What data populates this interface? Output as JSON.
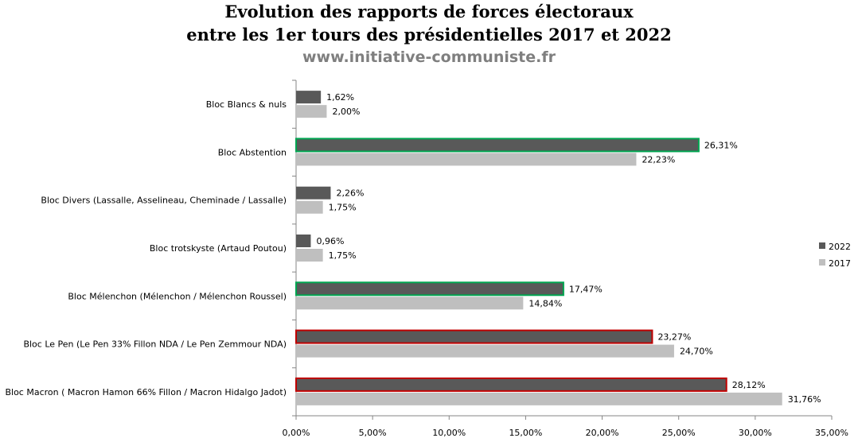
{
  "header": {
    "title_line1": "Evolution des rapports de forces électoraux",
    "title_line2": "entre les 1er tours des présidentielles 2017 et 2022",
    "subtitle": "www.initiative-communiste.fr"
  },
  "chart_data": {
    "type": "bar",
    "orientation": "horizontal",
    "title": "Evolution des rapports de forces électoraux entre les 1er tours des présidentielles 2017 et 2022",
    "subtitle": "www.initiative-communiste.fr",
    "categories": [
      "Bloc Blancs & nuls",
      "Bloc Abstention",
      "Bloc Divers (Lassalle, Asselineau, Cheminade / Lassalle)",
      "Bloc trotskyste (Artaud Poutou)",
      "Bloc Mélenchon (Mélenchon / Mélenchon Roussel)",
      "Bloc Le Pen (Le Pen 33% Fillon NDA  / Le Pen Zemmour NDA)",
      "Bloc Macron ( Macron Hamon  66% Fillon / Macron Hidalgo  Jadot)"
    ],
    "series": [
      {
        "name": "2022",
        "color": "#595959",
        "values": [
          1.62,
          26.31,
          2.26,
          0.96,
          17.47,
          23.27,
          28.12
        ],
        "labels": [
          "1,62%",
          "26,31%",
          "2,26%",
          "0,96%",
          "17,47%",
          "23,27%",
          "28,12%"
        ]
      },
      {
        "name": "2017",
        "color": "#bfbfbf",
        "values": [
          2.0,
          22.23,
          1.75,
          1.75,
          14.84,
          24.7,
          31.76
        ],
        "labels": [
          "2,00%",
          "22,23%",
          "1,75%",
          "1,75%",
          "14,84%",
          "24,70%",
          "31,76%"
        ]
      }
    ],
    "highlight_2022": {
      "Bloc Abstention": "#00a651",
      "Bloc Mélenchon (Mélenchon / Mélenchon Roussel)": "#00a651",
      "Bloc Le Pen (Le Pen 33% Fillon NDA  / Le Pen Zemmour NDA)": "#c00000",
      "Bloc Macron ( Macron Hamon  66% Fillon / Macron Hidalgo  Jadot)": "#c00000"
    },
    "xlim": [
      0,
      35
    ],
    "xticks": [
      0,
      5,
      10,
      15,
      20,
      25,
      30,
      35
    ],
    "xtick_labels": [
      "0,00%",
      "5,00%",
      "10,00%",
      "15,00%",
      "20,00%",
      "25,00%",
      "30,00%",
      "35,00%"
    ],
    "xlabel": "",
    "ylabel": "",
    "grid": false,
    "legend_position": "right"
  }
}
